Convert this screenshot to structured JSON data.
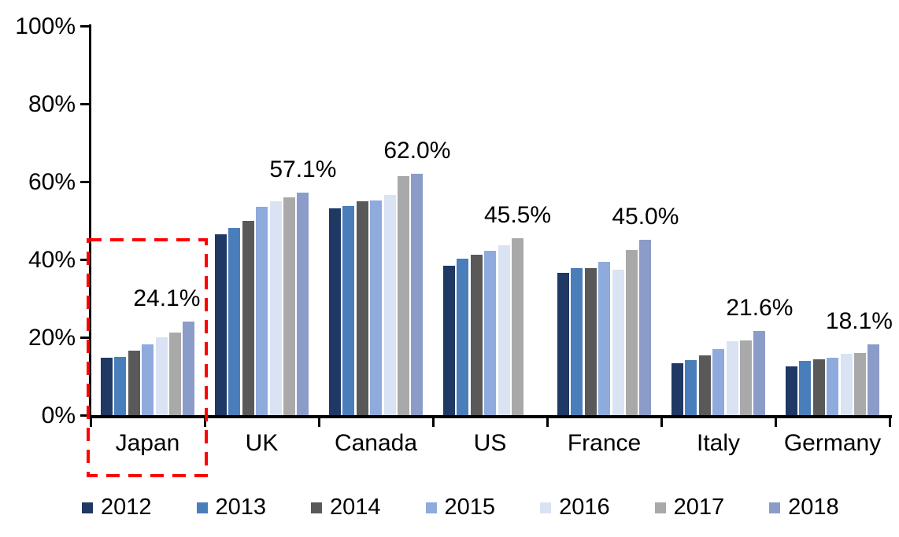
{
  "chart_data": {
    "type": "bar",
    "title": "",
    "categories": [
      "Japan",
      "UK",
      "Canada",
      "US",
      "France",
      "Italy",
      "Germany"
    ],
    "ylim": [
      0,
      100
    ],
    "grid": false,
    "yticks": [
      {
        "label": "0%",
        "value": 0
      },
      {
        "label": "20%",
        "value": 20
      },
      {
        "label": "40%",
        "value": 40
      },
      {
        "label": "60%",
        "value": 60
      },
      {
        "label": "80%",
        "value": 80
      },
      {
        "label": "100%",
        "value": 100
      }
    ],
    "series": [
      {
        "name": "2012",
        "color": "#1F3864",
        "values": [
          14.8,
          46.4,
          53.2,
          38.3,
          36.6,
          13.3,
          12.5
        ]
      },
      {
        "name": "2013",
        "color": "#4A7EBB",
        "values": [
          15.0,
          48.0,
          53.8,
          40.2,
          37.8,
          14.2,
          14.0
        ]
      },
      {
        "name": "2014",
        "color": "#595959",
        "values": [
          16.5,
          50.0,
          55.0,
          41.2,
          37.8,
          15.4,
          14.4
        ]
      },
      {
        "name": "2015",
        "color": "#8FAADC",
        "values": [
          18.2,
          53.6,
          55.2,
          42.3,
          39.4,
          16.9,
          14.8
        ]
      },
      {
        "name": "2016",
        "color": "#DAE3F3",
        "values": [
          20.0,
          54.9,
          56.5,
          43.7,
          37.4,
          19.0,
          15.7
        ]
      },
      {
        "name": "2017",
        "color": "#A9A9A9",
        "values": [
          21.2,
          56.0,
          61.5,
          45.5,
          42.4,
          19.2,
          15.9
        ]
      },
      {
        "name": "2018",
        "color": "#8C9CC9",
        "values": [
          24.1,
          57.1,
          62.0,
          null,
          45.0,
          21.6,
          18.1
        ]
      }
    ],
    "group_value_labels": [
      "24.1%",
      "57.1%",
      "62.0%",
      "45.5%",
      "45.0%",
      "21.6%",
      "18.1%"
    ],
    "legend": {
      "position": "bottom",
      "entries": [
        "2012",
        "2013",
        "2014",
        "2015",
        "2016",
        "2017",
        "2018"
      ]
    },
    "highlight": {
      "type": "dashed-box",
      "color": "#FF0000",
      "category": "Japan"
    }
  }
}
